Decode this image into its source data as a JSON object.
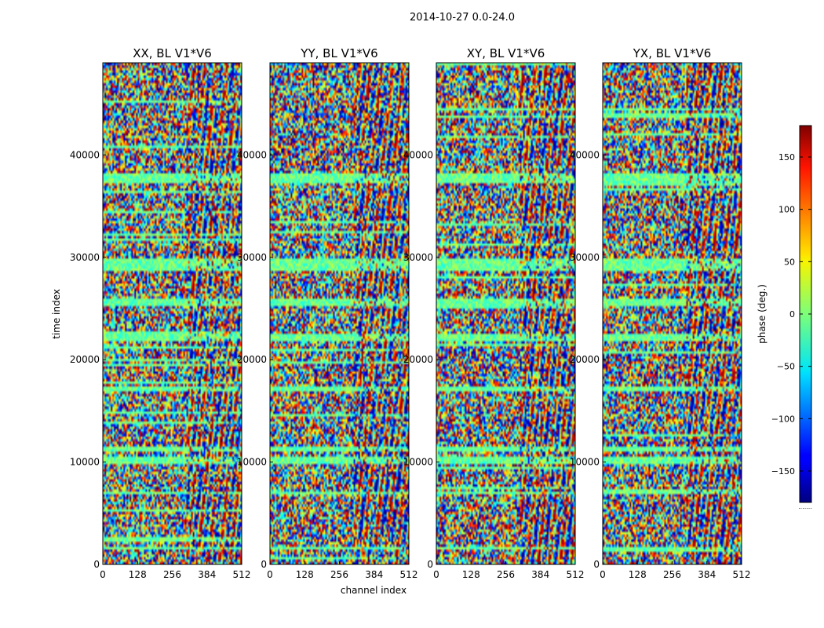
{
  "figure": {
    "title": "2014-10-27 0.0-24.0"
  },
  "chart_data": {
    "type": "heatmap",
    "panels": [
      {
        "title": "XX, BL V1*V6"
      },
      {
        "title": "YY, BL V1*V6"
      },
      {
        "title": "XY, BL V1*V6"
      },
      {
        "title": "YX, BL V1*V6"
      }
    ],
    "xlabel": "channel index",
    "ylabel": "time index",
    "xlim": [
      0,
      512
    ],
    "ylim": [
      0,
      49000
    ],
    "xticks": [
      0,
      128,
      256,
      384,
      512
    ],
    "yticks": [
      0,
      10000,
      20000,
      30000,
      40000
    ],
    "colorbar": {
      "label": "phase (deg.)",
      "range": [
        -180,
        180
      ],
      "ticks": [
        -150,
        -100,
        -50,
        0,
        50,
        100,
        150
      ],
      "colormap": "jet",
      "under_label": "......."
    }
  }
}
